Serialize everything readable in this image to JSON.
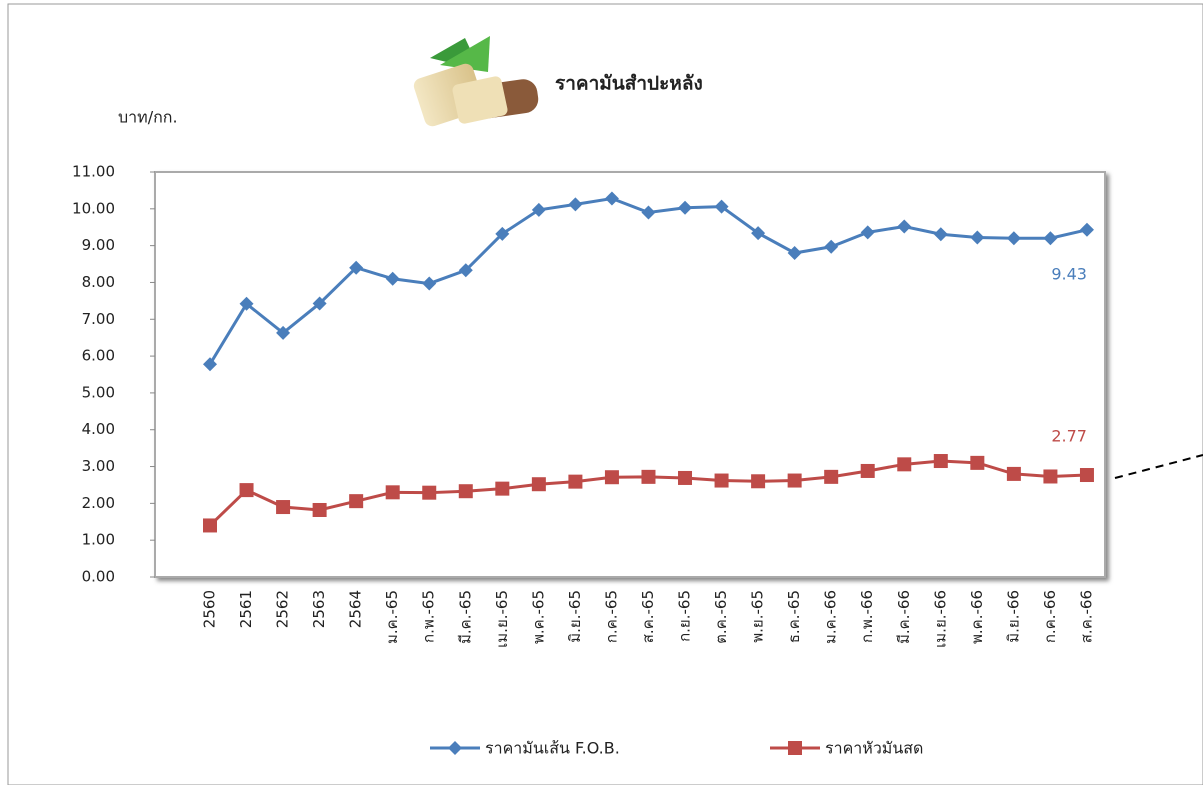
{
  "chart_data": {
    "type": "line",
    "title": "ราคามันสำปะหลัง",
    "y_label": "บาท/กก.",
    "categories": [
      "2560",
      "2561",
      "2562",
      "2563",
      "2564",
      "ม.ค.-65",
      "ก.พ.-65",
      "มี.ค.-65",
      "เม.ย.-65",
      "พ.ค.-65",
      "มิ.ย.-65",
      "ก.ค.-65",
      "ส.ค.-65",
      "ก.ย.-65",
      "ต.ค.-65",
      "พ.ย.-65",
      "ธ.ค.-65",
      "ม.ค.-66",
      "ก.พ.-66",
      "มี.ค.-66",
      "เม.ย.-66",
      "พ.ค.-66",
      "มิ.ย.-66",
      "ก.ค.-66",
      "ส.ค.-66"
    ],
    "series": [
      {
        "name": "ราคามันเส้น F.O.B.",
        "color": "#4a7ebb",
        "marker": "diamond",
        "values": [
          5.78,
          7.42,
          6.63,
          7.43,
          8.4,
          8.1,
          7.97,
          8.33,
          9.32,
          9.97,
          10.12,
          10.28,
          9.9,
          10.03,
          10.06,
          9.34,
          8.8,
          8.97,
          9.36,
          9.52,
          9.31,
          9.22,
          9.2,
          9.2,
          9.43
        ]
      },
      {
        "name": "ราคาหัวมันสด",
        "color": "#be4b48",
        "marker": "square",
        "values": [
          1.4,
          2.36,
          1.9,
          1.82,
          2.06,
          2.3,
          2.29,
          2.33,
          2.4,
          2.52,
          2.59,
          2.71,
          2.72,
          2.69,
          2.62,
          2.6,
          2.62,
          2.72,
          2.88,
          3.06,
          3.15,
          3.1,
          2.8,
          2.73,
          2.77
        ]
      }
    ],
    "ylim": [
      0,
      11
    ],
    "yticks": [
      {
        "value": 0,
        "label": "0.00"
      },
      {
        "value": 1,
        "label": "1.00"
      },
      {
        "value": 2,
        "label": "2.00"
      },
      {
        "value": 3,
        "label": "3.00"
      },
      {
        "value": 4,
        "label": "4.00"
      },
      {
        "value": 5,
        "label": "5.00"
      },
      {
        "value": 6,
        "label": "6.00"
      },
      {
        "value": 7,
        "label": "7.00"
      },
      {
        "value": 8,
        "label": "8.00"
      },
      {
        "value": 9,
        "label": "9.00"
      },
      {
        "value": 10,
        "label": "10.00"
      },
      {
        "value": 11,
        "label": "11.00"
      }
    ],
    "legend": "bottom"
  }
}
